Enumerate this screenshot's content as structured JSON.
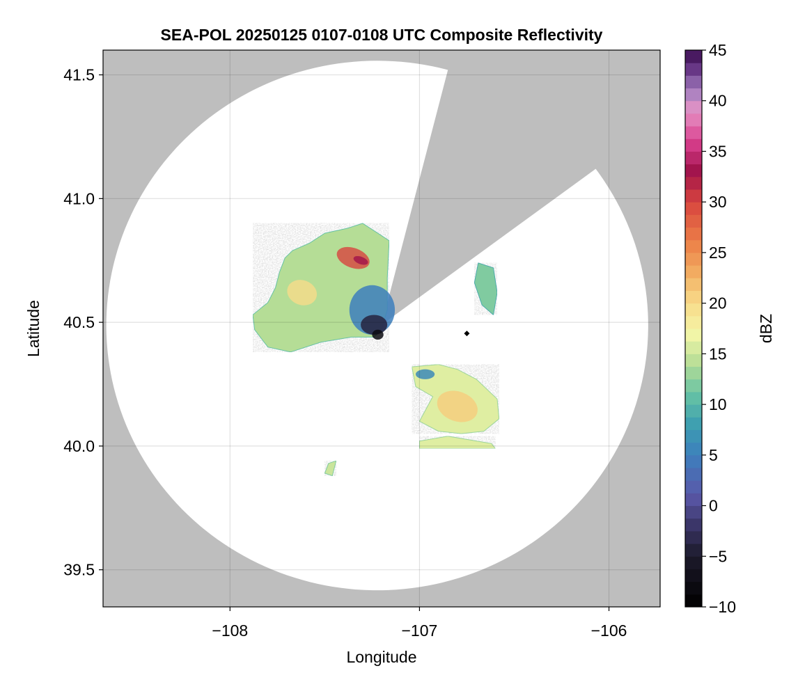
{
  "chart_data": {
    "type": "heatmap",
    "title": "SEA-POL 20250125 0107-0108 UTC Composite Reflectivity",
    "xlabel": "Longitude",
    "ylabel": "Latitude",
    "xlim": [
      -108.67,
      -105.73
    ],
    "ylim": [
      39.35,
      41.6
    ],
    "x_ticks": [
      {
        "value": -108,
        "label": "−108"
      },
      {
        "value": -107,
        "label": "−107"
      },
      {
        "value": -106,
        "label": "−106"
      }
    ],
    "y_ticks": [
      {
        "value": 39.5,
        "label": "39.5"
      },
      {
        "value": 40.0,
        "label": "40.0"
      },
      {
        "value": 40.5,
        "label": "40.5"
      },
      {
        "value": 41.0,
        "label": "41.0"
      },
      {
        "value": 41.5,
        "label": "41.5"
      }
    ],
    "grid": true,
    "no_coverage_color": "#bebebe",
    "coverage_color": "#ffffff",
    "radar": {
      "center_lon": -107.2,
      "center_lat": 40.49,
      "range_lon": 1.43,
      "range_lat": 1.07,
      "blocked_sectors": [
        {
          "from_lon": -106.85,
          "from_lat": 41.52,
          "to_lon": -106.07,
          "to_lat": 41.12
        }
      ]
    },
    "colorbar": {
      "label": "dBZ",
      "min": -10,
      "max": 45,
      "step": 1.25,
      "ticks": [
        {
          "value": -10,
          "label": "−10"
        },
        {
          "value": -5,
          "label": "−5"
        },
        {
          "value": 0,
          "label": "0"
        },
        {
          "value": 5,
          "label": "5"
        },
        {
          "value": 10,
          "label": "10"
        },
        {
          "value": 15,
          "label": "15"
        },
        {
          "value": 20,
          "label": "20"
        },
        {
          "value": 25,
          "label": "25"
        },
        {
          "value": 30,
          "label": "30"
        },
        {
          "value": 35,
          "label": "35"
        },
        {
          "value": 40,
          "label": "40"
        },
        {
          "value": 45,
          "label": "45"
        }
      ],
      "colormap": [
        {
          "value": -10,
          "color": "#000000"
        },
        {
          "value": -5,
          "color": "#1c1a2b"
        },
        {
          "value": -2,
          "color": "#3a3566"
        },
        {
          "value": 1,
          "color": "#5a57a8"
        },
        {
          "value": 5,
          "color": "#3d7fbd"
        },
        {
          "value": 8,
          "color": "#3d9fb0"
        },
        {
          "value": 11,
          "color": "#66c2a5"
        },
        {
          "value": 14,
          "color": "#b5dd96"
        },
        {
          "value": 17,
          "color": "#f4f6a8"
        },
        {
          "value": 20,
          "color": "#f8dc8a"
        },
        {
          "value": 23,
          "color": "#f2ad62"
        },
        {
          "value": 26,
          "color": "#ec8048"
        },
        {
          "value": 30,
          "color": "#d8453e"
        },
        {
          "value": 33,
          "color": "#a0124a"
        },
        {
          "value": 36,
          "color": "#d9408f"
        },
        {
          "value": 39,
          "color": "#e694c6"
        },
        {
          "value": 41,
          "color": "#a47fc0"
        },
        {
          "value": 43,
          "color": "#6b3a8a"
        },
        {
          "value": 45,
          "color": "#3a0c4e"
        }
      ]
    },
    "echo_regions": [
      {
        "name": "northwest-cell",
        "base_dbz": 14,
        "outline": [
          [
            -107.38,
            40.88
          ],
          [
            -107.3,
            40.9
          ],
          [
            -107.22,
            40.86
          ],
          [
            -107.16,
            40.83
          ],
          [
            -107.17,
            40.68
          ],
          [
            -107.17,
            40.55
          ],
          [
            -107.2,
            40.47
          ],
          [
            -107.24,
            40.44
          ],
          [
            -107.36,
            40.44
          ],
          [
            -107.52,
            40.42
          ],
          [
            -107.68,
            40.38
          ],
          [
            -107.8,
            40.4
          ],
          [
            -107.87,
            40.47
          ],
          [
            -107.88,
            40.53
          ],
          [
            -107.8,
            40.58
          ],
          [
            -107.76,
            40.64
          ],
          [
            -107.74,
            40.7
          ],
          [
            -107.71,
            40.76
          ],
          [
            -107.67,
            40.79
          ],
          [
            -107.58,
            40.82
          ],
          [
            -107.5,
            40.86
          ]
        ]
      },
      {
        "name": "southeast-cell",
        "base_dbz": 16,
        "outline": [
          [
            -107.04,
            40.32
          ],
          [
            -106.9,
            40.33
          ],
          [
            -106.8,
            40.31
          ],
          [
            -106.7,
            40.27
          ],
          [
            -106.59,
            40.19
          ],
          [
            -106.58,
            40.11
          ],
          [
            -106.66,
            40.06
          ],
          [
            -106.78,
            40.05
          ],
          [
            -106.9,
            40.06
          ],
          [
            -107.0,
            40.1
          ],
          [
            -106.93,
            40.2
          ],
          [
            -107.02,
            40.24
          ]
        ]
      },
      {
        "name": "east-cell",
        "base_dbz": 12,
        "outline": [
          [
            -106.69,
            40.74
          ],
          [
            -106.61,
            40.72
          ],
          [
            -106.59,
            40.62
          ],
          [
            -106.61,
            40.53
          ],
          [
            -106.67,
            40.57
          ],
          [
            -106.71,
            40.66
          ]
        ]
      },
      {
        "name": "south-fragment",
        "base_dbz": 15,
        "outline": [
          [
            -107.48,
            39.93
          ],
          [
            -107.44,
            39.94
          ],
          [
            -107.46,
            39.88
          ],
          [
            -107.5,
            39.89
          ]
        ]
      },
      {
        "name": "southern-strip",
        "base_dbz": 16,
        "outline": [
          [
            -107.0,
            40.02
          ],
          [
            -106.85,
            40.04
          ],
          [
            -106.62,
            40.01
          ],
          [
            -106.6,
            39.99
          ],
          [
            -106.88,
            39.99
          ],
          [
            -107.0,
            39.99
          ]
        ]
      }
    ],
    "intense_cores": [
      {
        "lon": -107.35,
        "lat": 40.76,
        "dbz": 30,
        "rx": 0.09,
        "ry": 0.04
      },
      {
        "lon": -107.31,
        "lat": 40.75,
        "dbz": 33,
        "rx": 0.04,
        "ry": 0.015
      },
      {
        "lon": -107.62,
        "lat": 40.62,
        "dbz": 20,
        "rx": 0.08,
        "ry": 0.05
      },
      {
        "lon": -106.8,
        "lat": 40.16,
        "dbz": 21,
        "rx": 0.11,
        "ry": 0.06
      }
    ],
    "weak_echo_zones": [
      {
        "lon": -107.25,
        "lat": 40.55,
        "dbz": 5,
        "rx": 0.12,
        "ry": 0.1
      },
      {
        "lon": -107.24,
        "lat": 40.49,
        "dbz": -4,
        "rx": 0.07,
        "ry": 0.04
      },
      {
        "lon": -107.22,
        "lat": 40.45,
        "dbz": -8,
        "rx": 0.03,
        "ry": 0.02
      },
      {
        "lon": -106.97,
        "lat": 40.29,
        "dbz": 6,
        "rx": 0.05,
        "ry": 0.02
      }
    ],
    "isolated_points": [
      {
        "lon": -106.75,
        "lat": 40.455,
        "dbz": -10
      }
    ]
  }
}
